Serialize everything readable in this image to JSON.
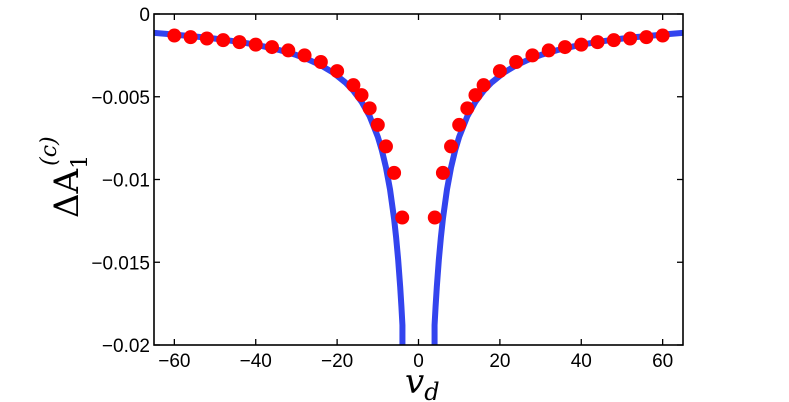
{
  "chart_data": {
    "type": "scatter",
    "title": "",
    "xlabel": {
      "base": "v",
      "sub": "d"
    },
    "ylabel": {
      "base": "ΔA",
      "sub": "1",
      "sup": "(c)"
    },
    "xlim": [
      -65,
      65
    ],
    "ylim": [
      -0.02,
      0
    ],
    "xticks": [
      -60,
      -40,
      -20,
      0,
      20,
      40,
      60
    ],
    "xtick_labels": [
      "−60",
      "−40",
      "−20",
      "0",
      "20",
      "40",
      "60"
    ],
    "yticks": [
      0,
      -0.005,
      -0.01,
      -0.015,
      -0.02
    ],
    "ytick_labels": [
      "0",
      "−0.005",
      "−0.01",
      "−0.015",
      "−0.02"
    ],
    "grid": false,
    "legend": "none",
    "colors": {
      "curve": "#3344ee",
      "points": "#ff0000"
    },
    "series": [
      {
        "kind": "curve",
        "x": [
          -65,
          -62,
          -58,
          -54,
          -50,
          -46,
          -42,
          -38,
          -34,
          -30,
          -27,
          -24,
          -21,
          -18,
          -16,
          -14,
          -12,
          -10,
          -9,
          -8,
          -7,
          -6,
          -5.5,
          -5,
          -4.5,
          -4.2,
          -3.95,
          3.95,
          4.2,
          4.5,
          5,
          5.5,
          6,
          7,
          8,
          9,
          10,
          12,
          14,
          16,
          18,
          21,
          24,
          27,
          30,
          34,
          38,
          42,
          46,
          50,
          54,
          58,
          62,
          65
        ],
        "y": [
          -0.00114,
          -0.0012,
          -0.00129,
          -0.00138,
          -0.00149,
          -0.00162,
          -0.00177,
          -0.00196,
          -0.00219,
          -0.00248,
          -0.00276,
          -0.0031,
          -0.00354,
          -0.00413,
          -0.00464,
          -0.0053,
          -0.00618,
          -0.00742,
          -0.00824,
          -0.00927,
          -0.0106,
          -0.01237,
          -0.0135,
          -0.01484,
          -0.01649,
          -0.01767,
          -0.0188,
          -0.0188,
          -0.01767,
          -0.01649,
          -0.01484,
          -0.0135,
          -0.01237,
          -0.0106,
          -0.00927,
          -0.00824,
          -0.00742,
          -0.00618,
          -0.0053,
          -0.00464,
          -0.00413,
          -0.00354,
          -0.0031,
          -0.00276,
          -0.00248,
          -0.00219,
          -0.00196,
          -0.00177,
          -0.00162,
          -0.00149,
          -0.00138,
          -0.00129,
          -0.0012,
          -0.00114
        ]
      },
      {
        "kind": "points",
        "x": [
          -60,
          -56,
          -52,
          -48,
          -44,
          -40,
          -36,
          -32,
          -28,
          -24,
          -20,
          -16,
          -14,
          -12,
          -10,
          -8,
          -6,
          -4,
          4,
          6,
          8,
          10,
          12,
          14,
          16,
          20,
          24,
          28,
          32,
          36,
          40,
          44,
          48,
          52,
          56,
          60
        ],
        "y": [
          -0.0013,
          -0.0014,
          -0.00148,
          -0.00158,
          -0.0017,
          -0.00185,
          -0.002,
          -0.0022,
          -0.0025,
          -0.0029,
          -0.00345,
          -0.0043,
          -0.0049,
          -0.0057,
          -0.0067,
          -0.008,
          -0.0096,
          -0.0123,
          -0.0123,
          -0.0096,
          -0.008,
          -0.0067,
          -0.0057,
          -0.0049,
          -0.0043,
          -0.00345,
          -0.0029,
          -0.0025,
          -0.0022,
          -0.002,
          -0.00185,
          -0.0017,
          -0.00158,
          -0.00148,
          -0.0014,
          -0.0013
        ]
      }
    ]
  }
}
